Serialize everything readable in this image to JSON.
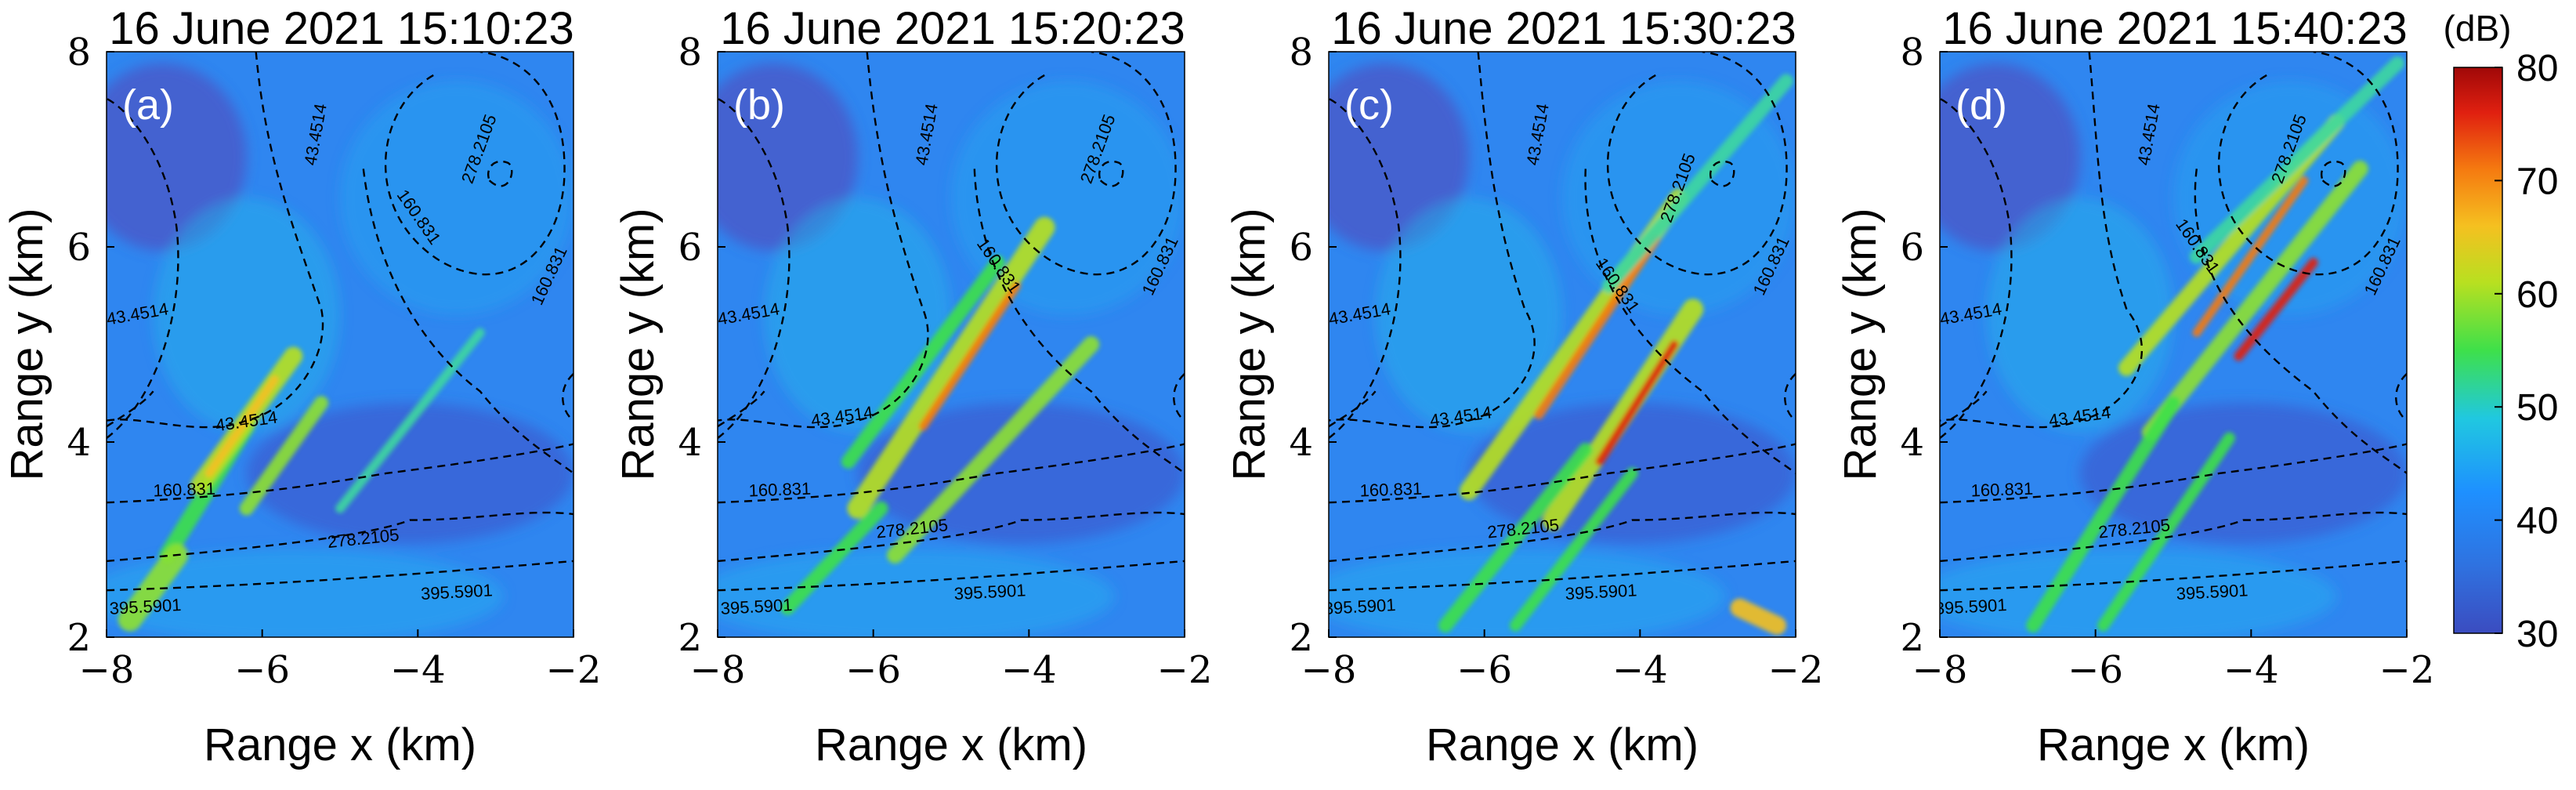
{
  "chart_data": {
    "type": "heatmap",
    "colorbar": {
      "unit": "(dB)",
      "min": 30,
      "max": 80,
      "ticks": [
        30,
        40,
        50,
        60,
        70,
        80
      ]
    },
    "panels": [
      {
        "id": "a",
        "panel_label": "(a)",
        "title": "16 June 2021 15:10:23",
        "xlabel": "Range x (km)",
        "ylabel": "Range y (km)",
        "xlim": [
          -8,
          -2
        ],
        "ylim": [
          2,
          8
        ],
        "xticks": [
          -8,
          -6,
          -4,
          -2
        ],
        "yticks": [
          2,
          4,
          6,
          8
        ],
        "xtick_labels": [
          "−8",
          "−6",
          "−4",
          "−2"
        ],
        "ytick_labels": [
          "2",
          "4",
          "6",
          "8"
        ],
        "contour_labels": [
          {
            "text": "43.4514",
            "x": -7.6,
            "y": 5.3,
            "angle": -10
          },
          {
            "text": "43.4514",
            "x": -5.3,
            "y": 7.15,
            "angle": -80
          },
          {
            "text": "43.4514",
            "x": -6.2,
            "y": 4.2,
            "angle": -8
          },
          {
            "text": "160.831",
            "x": -4.0,
            "y": 6.3,
            "angle": 55
          },
          {
            "text": "160.831",
            "x": -2.3,
            "y": 5.7,
            "angle": -65
          },
          {
            "text": "160.831",
            "x": -7.0,
            "y": 3.5,
            "angle": -2
          },
          {
            "text": "278.2105",
            "x": -3.2,
            "y": 7.0,
            "angle": -70
          },
          {
            "text": "278.2105",
            "x": -4.7,
            "y": 3.0,
            "angle": -6
          },
          {
            "text": "395.5901",
            "x": -7.5,
            "y": 2.3,
            "angle": -3
          },
          {
            "text": "395.5901",
            "x": -3.5,
            "y": 2.45,
            "angle": -3
          }
        ]
      },
      {
        "id": "b",
        "panel_label": "(b)",
        "title": "16 June 2021 15:20:23",
        "xlabel": "Range x (km)",
        "ylabel": "Range y (km)",
        "xlim": [
          -8,
          -2
        ],
        "ylim": [
          2,
          8
        ],
        "xticks": [
          -8,
          -6,
          -4,
          -2
        ],
        "yticks": [
          2,
          4,
          6,
          8
        ],
        "xtick_labels": [
          "−8",
          "−6",
          "−4",
          "−2"
        ],
        "ytick_labels": [
          "2",
          "4",
          "6",
          "8"
        ],
        "contour_labels": [
          {
            "text": "43.4514",
            "x": -7.6,
            "y": 5.3,
            "angle": -10
          },
          {
            "text": "43.4514",
            "x": -5.3,
            "y": 7.15,
            "angle": -80
          },
          {
            "text": "43.4514",
            "x": -6.4,
            "y": 4.25,
            "angle": -8
          },
          {
            "text": "160.831",
            "x": -4.4,
            "y": 5.8,
            "angle": 55
          },
          {
            "text": "160.831",
            "x": -2.3,
            "y": 5.8,
            "angle": -65
          },
          {
            "text": "160.831",
            "x": -7.2,
            "y": 3.5,
            "angle": -2
          },
          {
            "text": "278.2105",
            "x": -3.1,
            "y": 7.0,
            "angle": -70
          },
          {
            "text": "278.2105",
            "x": -5.5,
            "y": 3.1,
            "angle": -6
          },
          {
            "text": "395.5901",
            "x": -7.5,
            "y": 2.3,
            "angle": -3
          },
          {
            "text": "395.5901",
            "x": -4.5,
            "y": 2.45,
            "angle": -3
          }
        ]
      },
      {
        "id": "c",
        "panel_label": "(c)",
        "title": "16 June 2021 15:30:23",
        "xlabel": "Range x (km)",
        "ylabel": "Range y (km)",
        "xlim": [
          -8,
          -2
        ],
        "ylim": [
          2,
          8
        ],
        "xticks": [
          -8,
          -6,
          -4,
          -2
        ],
        "yticks": [
          2,
          4,
          6,
          8
        ],
        "xtick_labels": [
          "−8",
          "−6",
          "−4",
          "−2"
        ],
        "ytick_labels": [
          "2",
          "4",
          "6",
          "8"
        ],
        "contour_labels": [
          {
            "text": "43.4514",
            "x": -7.6,
            "y": 5.3,
            "angle": -10
          },
          {
            "text": "43.4514",
            "x": -5.3,
            "y": 7.15,
            "angle": -80
          },
          {
            "text": "43.4514",
            "x": -6.3,
            "y": 4.25,
            "angle": -8
          },
          {
            "text": "160.831",
            "x": -4.3,
            "y": 5.6,
            "angle": 55
          },
          {
            "text": "160.831",
            "x": -2.3,
            "y": 5.8,
            "angle": -65
          },
          {
            "text": "160.831",
            "x": -7.2,
            "y": 3.5,
            "angle": -2
          },
          {
            "text": "278.2105",
            "x": -3.5,
            "y": 6.6,
            "angle": -70
          },
          {
            "text": "278.2105",
            "x": -5.5,
            "y": 3.1,
            "angle": -6
          },
          {
            "text": "395.5901",
            "x": -7.6,
            "y": 2.3,
            "angle": -3
          },
          {
            "text": "395.5901",
            "x": -4.5,
            "y": 2.45,
            "angle": -3
          }
        ]
      },
      {
        "id": "d",
        "panel_label": "(d)",
        "title": "16 June 2021 15:40:23",
        "xlabel": "Range x (km)",
        "ylabel": "Range y (km)",
        "xlim": [
          -8,
          -2
        ],
        "ylim": [
          2,
          8
        ],
        "xticks": [
          -8,
          -6,
          -4,
          -2
        ],
        "yticks": [
          2,
          4,
          6,
          8
        ],
        "xtick_labels": [
          "−8",
          "−6",
          "−4",
          "−2"
        ],
        "ytick_labels": [
          "2",
          "4",
          "6",
          "8"
        ],
        "contour_labels": [
          {
            "text": "43.4514",
            "x": -7.6,
            "y": 5.3,
            "angle": -10
          },
          {
            "text": "43.4514",
            "x": -5.3,
            "y": 7.15,
            "angle": -80
          },
          {
            "text": "43.4514",
            "x": -6.2,
            "y": 4.25,
            "angle": -8
          },
          {
            "text": "160.831",
            "x": -4.7,
            "y": 6.0,
            "angle": 55
          },
          {
            "text": "160.831",
            "x": -2.3,
            "y": 5.8,
            "angle": -65
          },
          {
            "text": "160.831",
            "x": -7.2,
            "y": 3.5,
            "angle": -2
          },
          {
            "text": "278.2105",
            "x": -3.5,
            "y": 7.0,
            "angle": -70
          },
          {
            "text": "278.2105",
            "x": -5.5,
            "y": 3.1,
            "angle": -6
          },
          {
            "text": "395.5901",
            "x": -7.6,
            "y": 2.3,
            "angle": -3
          },
          {
            "text": "395.5901",
            "x": -4.5,
            "y": 2.45,
            "angle": -3
          }
        ]
      }
    ]
  }
}
